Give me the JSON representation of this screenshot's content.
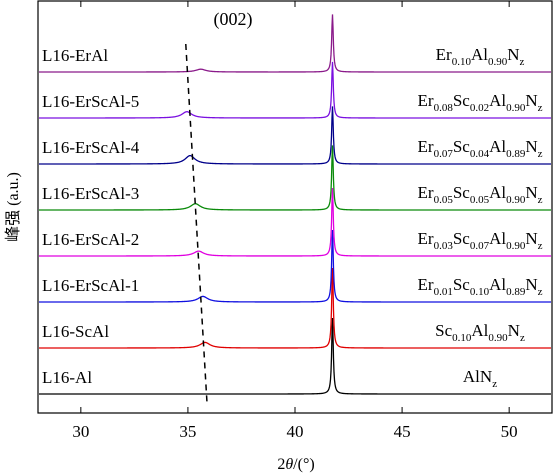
{
  "chart_data": {
    "type": "line",
    "title": "",
    "xlabel_theta": "θ",
    "xlabel_prefix": "2",
    "xlabel_suffix": "/(°)",
    "ylabel": "峰强 (a.u.)",
    "xlim": [
      28,
      52
    ],
    "xticks": [
      30,
      35,
      40,
      45,
      50
    ],
    "annotation": "(002)",
    "aln_peak": 41.75,
    "dashed_guide": {
      "x_start": 34.9,
      "x_end": 35.9
    },
    "series": [
      {
        "name": "L16-Al",
        "color": "#000000",
        "peak_002": 36.0,
        "h_002": 0,
        "h_main": 1.0,
        "formula": [
          [
            "AlN",
            ""
          ],
          [
            "z",
            "sub"
          ]
        ]
      },
      {
        "name": "L16-ScAl",
        "color": "#e00000",
        "peak_002": 35.8,
        "h_002": 0.4,
        "h_main": 1.0,
        "formula": [
          [
            "Sc",
            ""
          ],
          [
            "0.10",
            "sub"
          ],
          [
            "Al",
            ""
          ],
          [
            "0.90",
            "sub"
          ],
          [
            "N",
            ""
          ],
          [
            "z",
            "sub"
          ]
        ]
      },
      {
        "name": "L16-ErScAl-1",
        "color": "#1010e0",
        "peak_002": 35.7,
        "h_002": 0.4,
        "h_main": 0.9,
        "formula": [
          [
            "Er",
            ""
          ],
          [
            "0.01",
            "sub"
          ],
          [
            "Sc",
            ""
          ],
          [
            "0.10",
            "sub"
          ],
          [
            "Al",
            ""
          ],
          [
            "0.89",
            "sub"
          ],
          [
            "N",
            ""
          ],
          [
            "z",
            "sub"
          ]
        ]
      },
      {
        "name": "L16-ErScAl-2",
        "color": "#e000e0",
        "peak_002": 35.5,
        "h_002": 0.35,
        "h_main": 0.85,
        "formula": [
          [
            "Er",
            ""
          ],
          [
            "0.03",
            "sub"
          ],
          [
            "Sc",
            ""
          ],
          [
            "0.07",
            "sub"
          ],
          [
            "Al",
            ""
          ],
          [
            "0.90",
            "sub"
          ],
          [
            "N",
            ""
          ],
          [
            "z",
            "sub"
          ]
        ]
      },
      {
        "name": "L16-ErScAl-3",
        "color": "#0a8a0a",
        "peak_002": 35.35,
        "h_002": 0.45,
        "h_main": 0.85,
        "formula": [
          [
            "Er",
            ""
          ],
          [
            "0.05",
            "sub"
          ],
          [
            "Sc",
            ""
          ],
          [
            "0.05",
            "sub"
          ],
          [
            "Al",
            ""
          ],
          [
            "0.90",
            "sub"
          ],
          [
            "N",
            ""
          ],
          [
            "z",
            "sub"
          ]
        ]
      },
      {
        "name": "L16-ErScAl-4",
        "color": "#00008a",
        "peak_002": 35.1,
        "h_002": 0.6,
        "h_main": 0.8,
        "formula": [
          [
            "Er",
            ""
          ],
          [
            "0.07",
            "sub"
          ],
          [
            "Sc",
            ""
          ],
          [
            "0.04",
            "sub"
          ],
          [
            "Al",
            ""
          ],
          [
            "0.89",
            "sub"
          ],
          [
            "N",
            ""
          ],
          [
            "z",
            "sub"
          ]
        ]
      },
      {
        "name": "L16-ErScAl-5",
        "color": "#7a10e0",
        "peak_002": 34.95,
        "h_002": 0.45,
        "h_main": 0.85,
        "formula": [
          [
            "Er",
            ""
          ],
          [
            "0.08",
            "sub"
          ],
          [
            "Sc",
            ""
          ],
          [
            "0.02",
            "sub"
          ],
          [
            "Al",
            ""
          ],
          [
            "0.90",
            "sub"
          ],
          [
            "N",
            ""
          ],
          [
            "z",
            "sub"
          ]
        ]
      },
      {
        "name": "L16-ErAl",
        "color": "#8a1a8a",
        "peak_002": 35.6,
        "h_002": 0.2,
        "h_main": 0.9,
        "formula": [
          [
            "Er",
            ""
          ],
          [
            "0.10",
            "sub"
          ],
          [
            "Al",
            ""
          ],
          [
            "0.90",
            "sub"
          ],
          [
            "N",
            ""
          ],
          [
            "z",
            "sub"
          ]
        ]
      }
    ]
  }
}
